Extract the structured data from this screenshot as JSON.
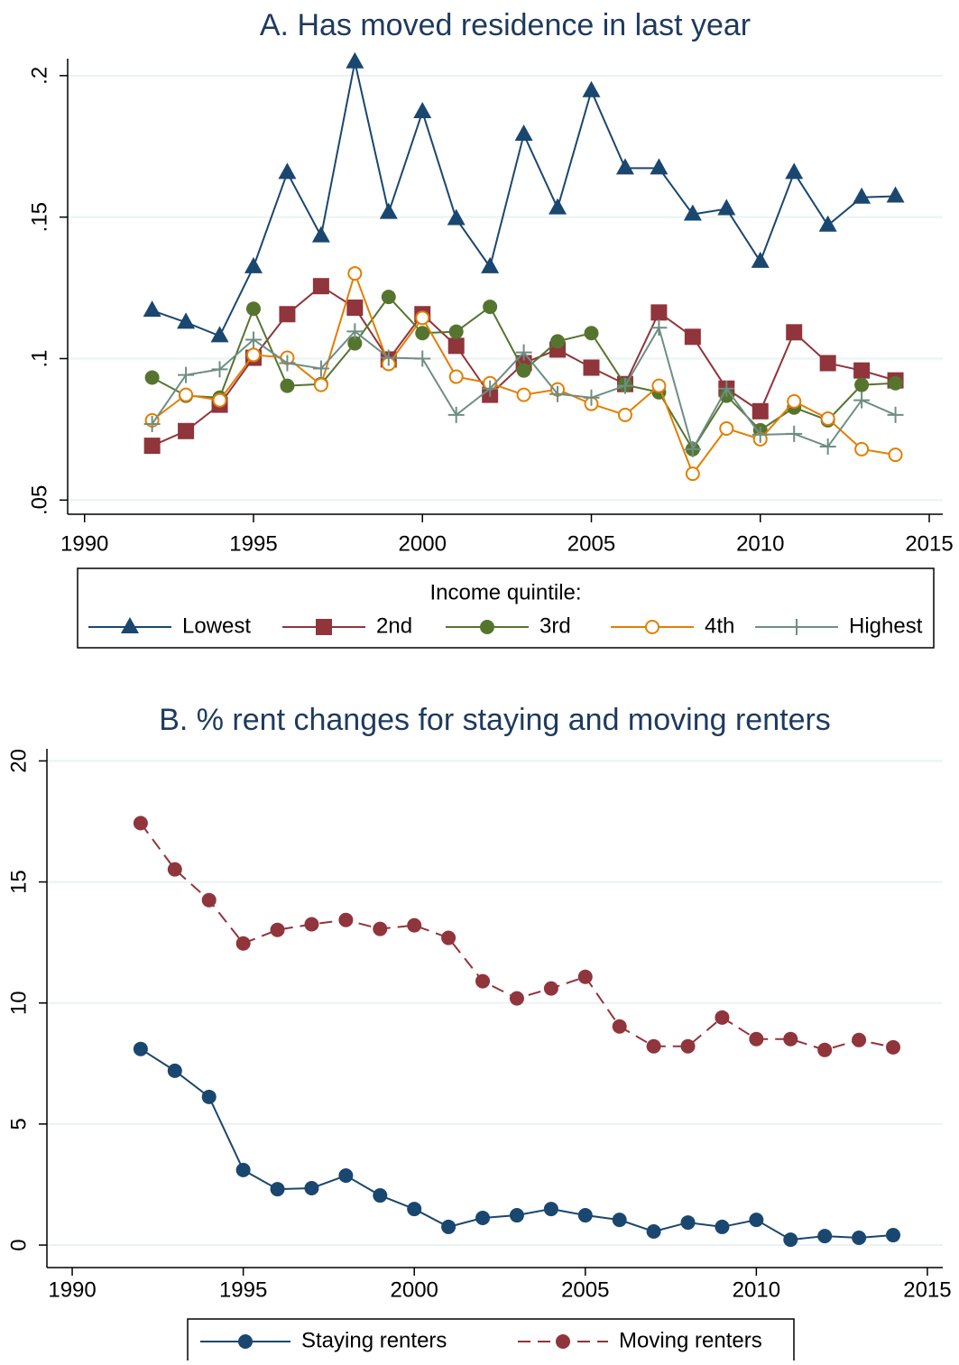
{
  "chart_data": [
    {
      "type": "line",
      "title": "A. Has moved residence in last year",
      "x": [
        1992,
        1993,
        1994,
        1995,
        1996,
        1997,
        1998,
        1999,
        2000,
        2001,
        2002,
        2003,
        2004,
        2005,
        2006,
        2007,
        2008,
        2009,
        2010,
        2011,
        2012,
        2013,
        2014
      ],
      "xlim": [
        1989.5,
        2015.4
      ],
      "xticks": [
        1990,
        1995,
        2000,
        2005,
        2010,
        2015
      ],
      "ylim": [
        0.045,
        0.206
      ],
      "yticks": [
        {
          "value": 0.05,
          "label": ".05"
        },
        {
          "value": 0.1,
          "label": ".1"
        },
        {
          "value": 0.15,
          "label": ".15"
        },
        {
          "value": 0.2,
          "label": ".2"
        }
      ],
      "grid": true,
      "legend": "bottom",
      "legend_title": "Income quintile:",
      "series": [
        {
          "name": "Lowest",
          "color": "#1a476f",
          "marker": "triangle",
          "values": [
            0.117,
            0.1128,
            0.108,
            0.1324,
            0.1657,
            0.1433,
            0.2048,
            0.1516,
            0.1872,
            0.1494,
            0.1324,
            0.1792,
            0.1532,
            0.1946,
            0.1673,
            0.1673,
            0.151,
            0.1529,
            0.1343,
            0.1657,
            0.1471,
            0.157,
            0.1574
          ]
        },
        {
          "name": "2nd",
          "color": "#90353b",
          "marker": "square",
          "values": [
            0.0692,
            0.0744,
            0.0837,
            0.1003,
            0.1157,
            0.1256,
            0.118,
            0.0997,
            0.1157,
            0.1045,
            0.0872,
            0.0984,
            0.1032,
            0.0968,
            0.091,
            0.1163,
            0.1077,
            0.0894,
            0.0814,
            0.1093,
            0.0984,
            0.0958,
            0.0923
          ]
        },
        {
          "name": "3rd",
          "color": "#55752f",
          "marker": "circle",
          "values": [
            0.0933,
            0.0869,
            0.0862,
            0.1176,
            0.0904,
            0.091,
            0.1054,
            0.1218,
            0.109,
            0.1095,
            0.1183,
            0.0958,
            0.1061,
            0.109,
            0.0907,
            0.0881,
            0.068,
            0.0869,
            0.0747,
            0.0827,
            0.0782,
            0.0907,
            0.0913
          ]
        },
        {
          "name": "4th",
          "color": "#e37e00",
          "marker": "circle-open",
          "values": [
            0.0782,
            0.0872,
            0.0853,
            0.1013,
            0.1003,
            0.0907,
            0.1301,
            0.0981,
            0.1144,
            0.0936,
            0.0913,
            0.0872,
            0.0891,
            0.084,
            0.0801,
            0.0904,
            0.0593,
            0.0753,
            0.0715,
            0.0849,
            0.0788,
            0.068,
            0.066
          ]
        },
        {
          "name": "Highest",
          "color": "#6e8e84",
          "marker": "plus",
          "values": [
            0.0769,
            0.0942,
            0.0962,
            0.1067,
            0.0984,
            0.0965,
            0.1096,
            0.1003,
            0.1,
            0.0801,
            0.0894,
            0.1022,
            0.0875,
            0.0862,
            0.0904,
            0.1109,
            0.068,
            0.0894,
            0.0731,
            0.0734,
            0.0689,
            0.0853,
            0.0801
          ]
        }
      ]
    },
    {
      "type": "line",
      "title": "B. % rent changes for staying and moving renters",
      "x": [
        1992,
        1993,
        1994,
        1995,
        1996,
        1997,
        1998,
        1999,
        2000,
        2001,
        2002,
        2003,
        2004,
        2005,
        2006,
        2007,
        2008,
        2009,
        2010,
        2011,
        2012,
        2013,
        2014
      ],
      "xlim": [
        1989.26,
        2015.45
      ],
      "xticks": [
        1990,
        1995,
        2000,
        2005,
        2010,
        2015
      ],
      "ylim": [
        -0.93,
        20.5
      ],
      "yticks": [
        0,
        5,
        10,
        15,
        20
      ],
      "grid": true,
      "legend": "bottom",
      "series": [
        {
          "name": "Staying renters",
          "color": "#1a476f",
          "marker": "circle",
          "dash": false,
          "values": [
            8.1,
            7.2,
            6.12,
            3.1,
            2.31,
            2.35,
            2.87,
            2.05,
            1.49,
            0.75,
            1.12,
            1.23,
            1.49,
            1.23,
            1.04,
            0.56,
            0.93,
            0.75,
            1.04,
            0.22,
            0.37,
            0.3,
            0.41
          ]
        },
        {
          "name": "Moving renters",
          "color": "#90353b",
          "marker": "circle",
          "dash": true,
          "values": [
            17.43,
            15.52,
            14.25,
            12.46,
            13.02,
            13.25,
            13.43,
            13.06,
            13.21,
            12.69,
            10.9,
            10.19,
            10.6,
            11.08,
            9.03,
            8.21,
            8.21,
            9.4,
            8.51,
            8.51,
            8.06,
            8.47,
            8.17
          ]
        }
      ]
    }
  ]
}
